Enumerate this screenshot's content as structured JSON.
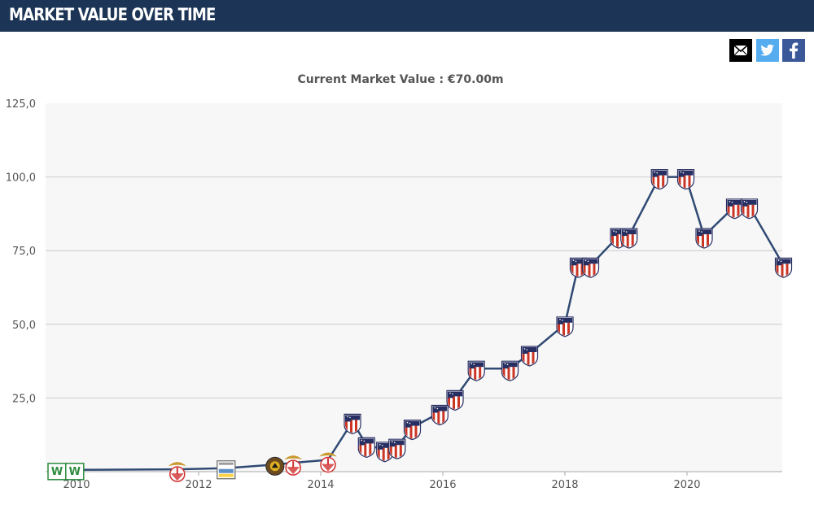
{
  "header": {
    "title": "MARKET VALUE OVER TIME"
  },
  "share": {
    "email_icon": "envelope-icon",
    "twitter_icon": "twitter-bird-icon",
    "facebook_icon": "facebook-f-icon"
  },
  "colors": {
    "header_bg": "#1c3456",
    "line": "#2f4a73",
    "plot_bg": "#f7f7f7",
    "grid": "#cccccc",
    "crest_red": "#cb3524",
    "crest_blue": "#272e61",
    "benfica_red": "#d12f2f",
    "benfica_gold": "#c99a2e",
    "wolfsburg_green": "#2e8b3e"
  },
  "chart_data": {
    "type": "line",
    "title": "Current Market Value : €70.00m",
    "y_ticks": [
      "25,0",
      "50,0",
      "75,0",
      "100,0",
      "125,0"
    ],
    "x_ticks": [
      "2010",
      "2012",
      "2014",
      "2016",
      "2018",
      "2020"
    ],
    "ylim": [
      0,
      125
    ],
    "xlim": [
      2009.5,
      2021.6
    ],
    "grid": true,
    "legend": "none",
    "series": [
      {
        "points": [
          {
            "x": 2009.68,
            "y": 0.6,
            "club": "wolfsburg"
          },
          {
            "x": 2009.97,
            "y": 0.6,
            "club": "wolfsburg"
          },
          {
            "x": 2011.65,
            "y": 0.8,
            "club": "benfica"
          },
          {
            "x": 2012.45,
            "y": 1.2,
            "club": "pacos-ferreira"
          },
          {
            "x": 2013.25,
            "y": 2.4,
            "club": "rio-ave"
          },
          {
            "x": 2013.55,
            "y": 3.0,
            "club": "benfica"
          },
          {
            "x": 2014.12,
            "y": 4.0,
            "club": "benfica"
          },
          {
            "x": 2014.52,
            "y": 17.0,
            "club": "atletico-madrid"
          },
          {
            "x": 2014.75,
            "y": 9.0,
            "club": "atletico-madrid"
          },
          {
            "x": 2015.05,
            "y": 7.5,
            "club": "atletico-madrid"
          },
          {
            "x": 2015.25,
            "y": 8.5,
            "club": "atletico-madrid"
          },
          {
            "x": 2015.5,
            "y": 15.0,
            "club": "atletico-madrid"
          },
          {
            "x": 2015.95,
            "y": 20.0,
            "club": "atletico-madrid"
          },
          {
            "x": 2016.2,
            "y": 25.0,
            "club": "atletico-madrid"
          },
          {
            "x": 2016.55,
            "y": 35.0,
            "club": "atletico-madrid"
          },
          {
            "x": 2017.1,
            "y": 35.0,
            "club": "atletico-madrid"
          },
          {
            "x": 2017.42,
            "y": 40.0,
            "club": "atletico-madrid"
          },
          {
            "x": 2018.0,
            "y": 50.0,
            "club": "atletico-madrid"
          },
          {
            "x": 2018.22,
            "y": 70.0,
            "club": "atletico-madrid"
          },
          {
            "x": 2018.42,
            "y": 70.0,
            "club": "atletico-madrid"
          },
          {
            "x": 2018.88,
            "y": 80.0,
            "club": "atletico-madrid"
          },
          {
            "x": 2019.05,
            "y": 80.0,
            "club": "atletico-madrid"
          },
          {
            "x": 2019.55,
            "y": 100.0,
            "club": "atletico-madrid"
          },
          {
            "x": 2019.98,
            "y": 100.0,
            "club": "atletico-madrid"
          },
          {
            "x": 2020.28,
            "y": 80.0,
            "club": "atletico-madrid"
          },
          {
            "x": 2020.78,
            "y": 90.0,
            "club": "atletico-madrid"
          },
          {
            "x": 2021.02,
            "y": 90.0,
            "club": "atletico-madrid"
          },
          {
            "x": 2021.58,
            "y": 70.0,
            "club": "atletico-madrid"
          }
        ]
      }
    ]
  }
}
